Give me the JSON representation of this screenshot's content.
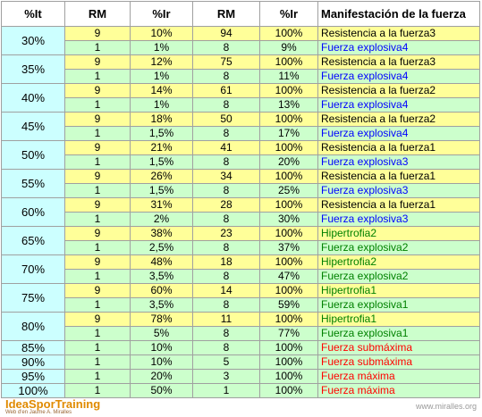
{
  "header": [
    "%It",
    "RM",
    "%Ir",
    "RM",
    "%Ir",
    "Manifestación de la fuerza"
  ],
  "groups": [
    {
      "it": "30%",
      "rows": [
        {
          "cells": [
            "9",
            "10%",
            "94",
            "100%",
            "Resistencia a la fuerza3"
          ],
          "color": "#000000"
        },
        {
          "cells": [
            "1",
            "1%",
            "8",
            "9%",
            "Fuerza explosiva4"
          ],
          "color": "#0000ff"
        }
      ]
    },
    {
      "it": "35%",
      "rows": [
        {
          "cells": [
            "9",
            "12%",
            "75",
            "100%",
            "Resistencia a la fuerza3"
          ],
          "color": "#000000"
        },
        {
          "cells": [
            "1",
            "1%",
            "8",
            "11%",
            "Fuerza explosiva4"
          ],
          "color": "#0000ff"
        }
      ]
    },
    {
      "it": "40%",
      "rows": [
        {
          "cells": [
            "9",
            "14%",
            "61",
            "100%",
            "Resistencia a la fuerza2"
          ],
          "color": "#000000"
        },
        {
          "cells": [
            "1",
            "1%",
            "8",
            "13%",
            "Fuerza explosiva4"
          ],
          "color": "#0000ff"
        }
      ]
    },
    {
      "it": "45%",
      "rows": [
        {
          "cells": [
            "9",
            "18%",
            "50",
            "100%",
            "Resistencia a la fuerza2"
          ],
          "color": "#000000"
        },
        {
          "cells": [
            "1",
            "1,5%",
            "8",
            "17%",
            "Fuerza explosiva4"
          ],
          "color": "#0000ff"
        }
      ]
    },
    {
      "it": "50%",
      "rows": [
        {
          "cells": [
            "9",
            "21%",
            "41",
            "100%",
            "Resistencia a la fuerza1"
          ],
          "color": "#000000"
        },
        {
          "cells": [
            "1",
            "1,5%",
            "8",
            "20%",
            "Fuerza explosiva3"
          ],
          "color": "#0000ff"
        }
      ]
    },
    {
      "it": "55%",
      "rows": [
        {
          "cells": [
            "9",
            "26%",
            "34",
            "100%",
            "Resistencia a la fuerza1"
          ],
          "color": "#000000"
        },
        {
          "cells": [
            "1",
            "1,5%",
            "8",
            "25%",
            "Fuerza explosiva3"
          ],
          "color": "#0000ff"
        }
      ]
    },
    {
      "it": "60%",
      "rows": [
        {
          "cells": [
            "9",
            "31%",
            "28",
            "100%",
            "Resistencia a la fuerza1"
          ],
          "color": "#000000"
        },
        {
          "cells": [
            "1",
            "2%",
            "8",
            "30%",
            "Fuerza explosiva3"
          ],
          "color": "#0000ff"
        }
      ]
    },
    {
      "it": "65%",
      "rows": [
        {
          "cells": [
            "9",
            "38%",
            "23",
            "100%",
            "Hipertrofia2"
          ],
          "color": "#008000"
        },
        {
          "cells": [
            "1",
            "2,5%",
            "8",
            "37%",
            "Fuerza explosiva2"
          ],
          "color": "#008000"
        }
      ]
    },
    {
      "it": "70%",
      "rows": [
        {
          "cells": [
            "9",
            "48%",
            "18",
            "100%",
            "Hipertrofia2"
          ],
          "color": "#008000"
        },
        {
          "cells": [
            "1",
            "3,5%",
            "8",
            "47%",
            "Fuerza explosiva2"
          ],
          "color": "#008000"
        }
      ]
    },
    {
      "it": "75%",
      "rows": [
        {
          "cells": [
            "9",
            "60%",
            "14",
            "100%",
            "Hipertrofia1"
          ],
          "color": "#008000"
        },
        {
          "cells": [
            "1",
            "3,5%",
            "8",
            "59%",
            "Fuerza explosiva1"
          ],
          "color": "#008000"
        }
      ]
    },
    {
      "it": "80%",
      "rows": [
        {
          "cells": [
            "9",
            "78%",
            "11",
            "100%",
            "Hipertrofia1"
          ],
          "color": "#008000"
        },
        {
          "cells": [
            "1",
            "5%",
            "8",
            "77%",
            "Fuerza explosiva1"
          ],
          "color": "#008000"
        }
      ]
    },
    {
      "it": "85%",
      "rows": [
        {
          "cells": [
            "1",
            "10%",
            "8",
            "100%",
            "Fuerza submáxima"
          ],
          "color": "#ff0000"
        }
      ]
    },
    {
      "it": "90%",
      "rows": [
        {
          "cells": [
            "1",
            "10%",
            "5",
            "100%",
            "Fuerza submáxima"
          ],
          "color": "#ff0000"
        }
      ]
    },
    {
      "it": "95%",
      "rows": [
        {
          "cells": [
            "1",
            "20%",
            "3",
            "100%",
            "Fuerza máxima"
          ],
          "color": "#ff0000"
        }
      ]
    },
    {
      "it": "100%",
      "rows": [
        {
          "cells": [
            "1",
            "50%",
            "1",
            "100%",
            "Fuerza máxima"
          ],
          "color": "#ff0000"
        }
      ]
    }
  ],
  "footer": {
    "logo": "IdeaSporTraining",
    "tagline": "Web d'en Jaume A. Miralles",
    "url": "www.miralles.org"
  }
}
